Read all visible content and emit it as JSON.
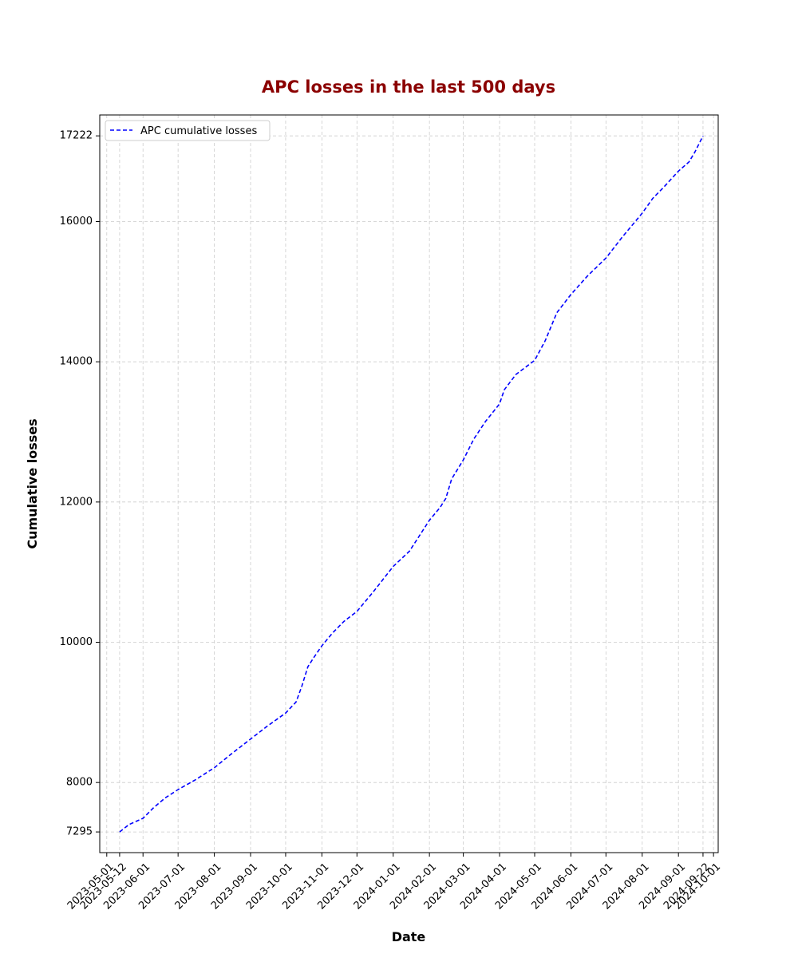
{
  "chart_data": {
    "type": "line",
    "title": "APC losses in the last 500 days",
    "title_color": "#8b0000",
    "xlabel": "Date",
    "ylabel": "Cumulative losses",
    "xlim": [
      "2023-04-25",
      "2024-10-05"
    ],
    "ylim": [
      7000,
      17520
    ],
    "x_ticks": [
      "2023-05-01",
      "2023-05-12",
      "2023-06-01",
      "2023-07-01",
      "2023-08-01",
      "2023-09-01",
      "2023-10-01",
      "2023-11-01",
      "2023-12-01",
      "2024-01-01",
      "2024-02-01",
      "2024-03-01",
      "2024-04-01",
      "2024-05-01",
      "2024-06-01",
      "2024-07-01",
      "2024-08-01",
      "2024-09-01",
      "2024-09-22",
      "2024-10-01"
    ],
    "y_ticks": [
      7295,
      8000,
      10000,
      12000,
      14000,
      16000,
      17222
    ],
    "grid": true,
    "legend_position": "top-left",
    "series": [
      {
        "name": "APC cumulative losses",
        "color": "#0000ff",
        "line_style": "dashed",
        "x": [
          "2023-05-12",
          "2023-05-20",
          "2023-06-01",
          "2023-06-10",
          "2023-06-20",
          "2023-07-01",
          "2023-07-15",
          "2023-08-01",
          "2023-08-15",
          "2023-09-01",
          "2023-09-15",
          "2023-10-01",
          "2023-10-10",
          "2023-10-15",
          "2023-10-20",
          "2023-10-25",
          "2023-11-01",
          "2023-11-10",
          "2023-11-20",
          "2023-12-01",
          "2023-12-15",
          "2024-01-01",
          "2024-01-15",
          "2024-01-25",
          "2024-02-01",
          "2024-02-10",
          "2024-02-15",
          "2024-02-20",
          "2024-03-01",
          "2024-03-10",
          "2024-03-20",
          "2024-04-01",
          "2024-04-05",
          "2024-04-15",
          "2024-05-01",
          "2024-05-10",
          "2024-05-20",
          "2024-06-01",
          "2024-06-15",
          "2024-07-01",
          "2024-07-15",
          "2024-08-01",
          "2024-08-10",
          "2024-08-20",
          "2024-09-01",
          "2024-09-10",
          "2024-09-15",
          "2024-09-22"
        ],
        "values": [
          7295,
          7400,
          7490,
          7640,
          7780,
          7900,
          8030,
          8210,
          8400,
          8620,
          8800,
          8990,
          9150,
          9380,
          9650,
          9780,
          9950,
          10130,
          10300,
          10440,
          10720,
          11080,
          11300,
          11560,
          11740,
          11920,
          12050,
          12330,
          12600,
          12900,
          13150,
          13400,
          13600,
          13820,
          14020,
          14300,
          14700,
          14960,
          15220,
          15480,
          15780,
          16120,
          16330,
          16500,
          16720,
          16850,
          16990,
          17222
        ]
      }
    ]
  }
}
